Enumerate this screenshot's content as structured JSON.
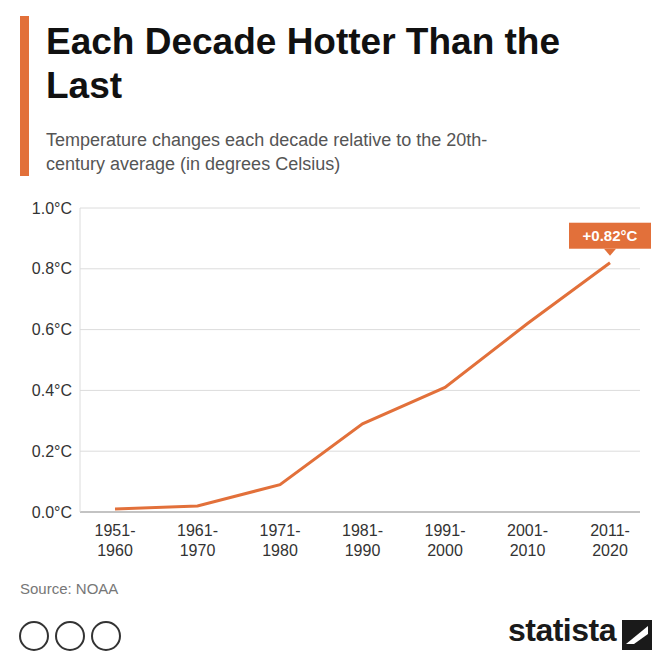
{
  "chart_data": {
    "type": "line",
    "title": "Each Decade Hotter Than the Last",
    "subtitle": "Temperature changes each decade relative to the 20th-century average (in degrees Celsius)",
    "categories": [
      "1951-1960",
      "1961-1970",
      "1971-1980",
      "1981-1990",
      "1991-2000",
      "2001-2010",
      "2011-2020"
    ],
    "values": [
      0.01,
      0.02,
      0.09,
      0.29,
      0.41,
      0.62,
      0.82
    ],
    "color": "#e2703a",
    "ylim": [
      0,
      1.0
    ],
    "yticks": [
      {
        "value": 0,
        "label": "0.0°C"
      },
      {
        "value": 0.2,
        "label": "0.2°C"
      },
      {
        "value": 0.4,
        "label": "0.4°C"
      },
      {
        "value": 0.6,
        "label": "0.6°C"
      },
      {
        "value": 0.8,
        "label": "0.8°C"
      },
      {
        "value": 1.0,
        "label": "1.0°C"
      }
    ],
    "grid": true,
    "annotations": [
      {
        "text": "+0.82°C",
        "x": "2011-2020",
        "y": 0.82
      }
    ],
    "source": "Source: NOAA",
    "logo": "statista"
  }
}
